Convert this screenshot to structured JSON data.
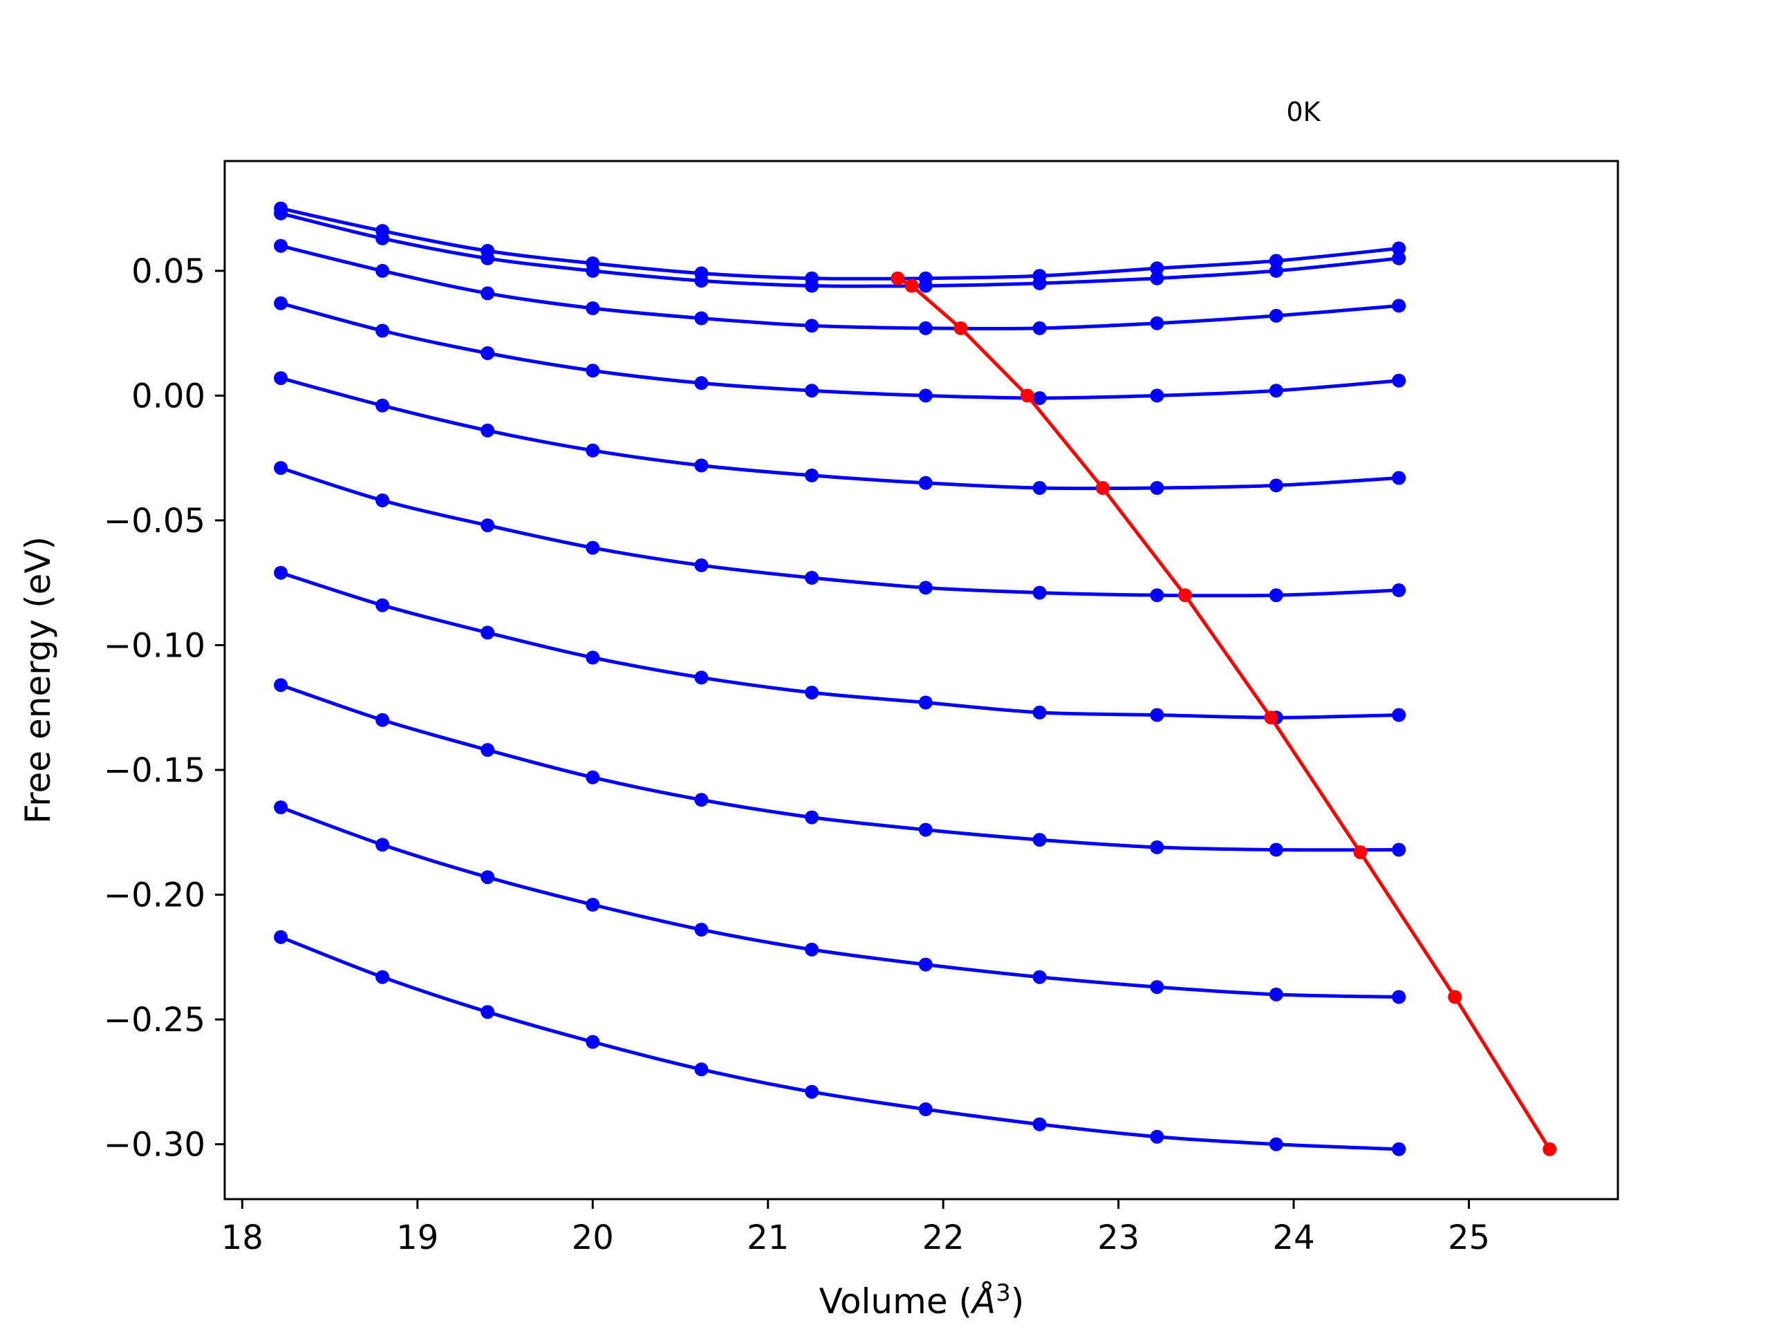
{
  "chart_data": {
    "type": "line",
    "title": "",
    "annotation": "0K",
    "xlabel": "Volume (",
    "xlabel_symbol": "Å",
    "xlabel_exp": "3",
    "xlabel_close": ")",
    "ylabel": "Free energy (eV)",
    "xlim": [
      17.9,
      25.85
    ],
    "ylim": [
      -0.322,
      0.094
    ],
    "xticks": [
      18,
      19,
      20,
      21,
      22,
      23,
      24,
      25
    ],
    "xtick_labels": [
      "18",
      "19",
      "20",
      "21",
      "22",
      "23",
      "24",
      "25"
    ],
    "yticks": [
      0.05,
      0.0,
      -0.05,
      -0.1,
      -0.15,
      -0.2,
      -0.25,
      -0.3
    ],
    "ytick_labels": [
      "0.05",
      "0.00",
      "−0.05",
      "−0.10",
      "−0.15",
      "−0.20",
      "−0.25",
      "−0.30"
    ],
    "grid": false,
    "x": [
      18.22,
      18.8,
      19.4,
      20.0,
      20.62,
      21.25,
      21.9,
      22.55,
      23.22,
      23.9,
      24.6
    ],
    "series": [
      {
        "color": "#0000ff",
        "values": [
          0.075,
          0.066,
          0.058,
          0.053,
          0.049,
          0.047,
          0.047,
          0.048,
          0.051,
          0.054,
          0.059
        ]
      },
      {
        "color": "#0000ff",
        "values": [
          0.073,
          0.063,
          0.055,
          0.05,
          0.046,
          0.044,
          0.044,
          0.045,
          0.047,
          0.05,
          0.055
        ]
      },
      {
        "color": "#0000ff",
        "values": [
          0.06,
          0.05,
          0.041,
          0.035,
          0.031,
          0.028,
          0.027,
          0.027,
          0.029,
          0.032,
          0.036
        ]
      },
      {
        "color": "#0000ff",
        "values": [
          0.037,
          0.026,
          0.017,
          0.01,
          0.005,
          0.002,
          0.0,
          -0.001,
          0.0,
          0.002,
          0.006
        ]
      },
      {
        "color": "#0000ff",
        "values": [
          0.007,
          -0.004,
          -0.014,
          -0.022,
          -0.028,
          -0.032,
          -0.035,
          -0.037,
          -0.037,
          -0.036,
          -0.033
        ]
      },
      {
        "color": "#0000ff",
        "values": [
          -0.029,
          -0.042,
          -0.052,
          -0.061,
          -0.068,
          -0.073,
          -0.077,
          -0.079,
          -0.08,
          -0.08,
          -0.078
        ]
      },
      {
        "color": "#0000ff",
        "values": [
          -0.071,
          -0.084,
          -0.095,
          -0.105,
          -0.113,
          -0.119,
          -0.123,
          -0.127,
          -0.128,
          -0.129,
          -0.128
        ]
      },
      {
        "color": "#0000ff",
        "values": [
          -0.116,
          -0.13,
          -0.142,
          -0.153,
          -0.162,
          -0.169,
          -0.174,
          -0.178,
          -0.181,
          -0.182,
          -0.182
        ]
      },
      {
        "color": "#0000ff",
        "values": [
          -0.165,
          -0.18,
          -0.193,
          -0.204,
          -0.214,
          -0.222,
          -0.228,
          -0.233,
          -0.237,
          -0.24,
          -0.241
        ]
      },
      {
        "color": "#0000ff",
        "values": [
          -0.217,
          -0.233,
          -0.247,
          -0.259,
          -0.27,
          -0.279,
          -0.286,
          -0.292,
          -0.297,
          -0.3,
          -0.302
        ]
      }
    ],
    "minimum_line": {
      "color": "#ff0000",
      "x": [
        21.74,
        21.82,
        22.1,
        22.48,
        22.91,
        23.38,
        23.87,
        24.38,
        24.92,
        25.46
      ],
      "y": [
        0.047,
        0.044,
        0.027,
        0.0,
        -0.037,
        -0.08,
        -0.129,
        -0.183,
        -0.241,
        -0.302
      ]
    }
  }
}
